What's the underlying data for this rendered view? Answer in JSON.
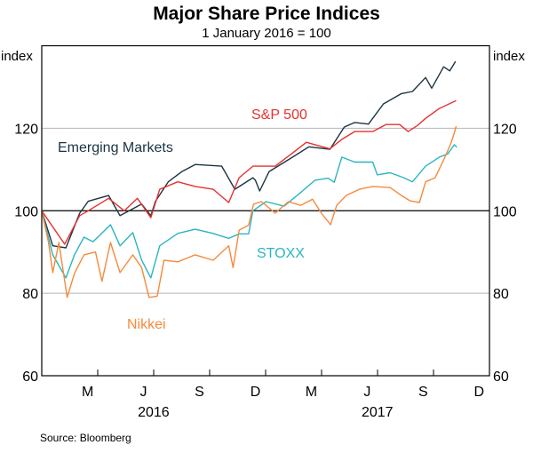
{
  "chart_data": {
    "type": "line",
    "title": "Major Share Price Indices",
    "subtitle": "1 January 2016 = 100",
    "ylabel_left": "index",
    "ylabel_right": "index",
    "ylim": [
      60,
      140
    ],
    "yticks": [
      60,
      80,
      100,
      120
    ],
    "xlim": [
      "2016-01-01",
      "2017-12-31"
    ],
    "xtick_labels": [
      {
        "label": "M",
        "date": "2016-03-15"
      },
      {
        "label": "J",
        "date": "2016-06-15"
      },
      {
        "label": "S",
        "date": "2016-09-15"
      },
      {
        "label": "D",
        "date": "2016-12-15"
      },
      {
        "label": "M",
        "date": "2017-03-15"
      },
      {
        "label": "J",
        "date": "2017-06-15"
      },
      {
        "label": "S",
        "date": "2017-09-15"
      },
      {
        "label": "D",
        "date": "2017-12-15"
      }
    ],
    "year_labels": [
      {
        "label": "2016",
        "date": "2016-07-01"
      },
      {
        "label": "2017",
        "date": "2017-07-01"
      }
    ],
    "grid": {
      "horizontal": true,
      "reference_line": 100
    },
    "source": "Source:   Bloomberg",
    "series": [
      {
        "name": "Emerging Markets",
        "color": "#1b3442",
        "points": [
          [
            "2016-01-01",
            100
          ],
          [
            "2016-01-19",
            91.5
          ],
          [
            "2016-02-10",
            91
          ],
          [
            "2016-03-02",
            99.4
          ],
          [
            "2016-03-16",
            102.3
          ],
          [
            "2016-04-19",
            103.7
          ],
          [
            "2016-05-07",
            98.8
          ],
          [
            "2016-06-12",
            101.6
          ],
          [
            "2016-06-27",
            98.8
          ],
          [
            "2016-07-04",
            102.3
          ],
          [
            "2016-07-25",
            107
          ],
          [
            "2016-08-17",
            109.5
          ],
          [
            "2016-09-08",
            111.2
          ],
          [
            "2016-10-21",
            110.8
          ],
          [
            "2016-11-12",
            105.2
          ],
          [
            "2016-12-11",
            108
          ],
          [
            "2016-12-15",
            107.4
          ],
          [
            "2016-12-22",
            104.8
          ],
          [
            "2017-01-07",
            109.5
          ],
          [
            "2017-02-15",
            113
          ],
          [
            "2017-03-11",
            115.5
          ],
          [
            "2017-04-15",
            114.9
          ],
          [
            "2017-05-08",
            120.3
          ],
          [
            "2017-05-25",
            121.4
          ],
          [
            "2017-06-17",
            121
          ],
          [
            "2017-07-11",
            125.9
          ],
          [
            "2017-08-10",
            128.4
          ],
          [
            "2017-08-28",
            128.9
          ],
          [
            "2017-09-19",
            132.3
          ],
          [
            "2017-09-29",
            129.7
          ],
          [
            "2017-10-18",
            134.9
          ],
          [
            "2017-10-28",
            133.9
          ],
          [
            "2017-11-07",
            136.2
          ]
        ]
      },
      {
        "name": "S&P 500",
        "color": "#e5312e",
        "points": [
          [
            "2016-01-01",
            100
          ],
          [
            "2016-02-08",
            91.9
          ],
          [
            "2016-03-02",
            98.8
          ],
          [
            "2016-03-16",
            100
          ],
          [
            "2016-04-19",
            103
          ],
          [
            "2016-05-14",
            100
          ],
          [
            "2016-06-05",
            103
          ],
          [
            "2016-06-27",
            98.3
          ],
          [
            "2016-07-11",
            105.2
          ],
          [
            "2016-08-10",
            107
          ],
          [
            "2016-09-08",
            105.9
          ],
          [
            "2016-10-07",
            105.2
          ],
          [
            "2016-11-02",
            102
          ],
          [
            "2016-11-19",
            108
          ],
          [
            "2016-12-11",
            110.8
          ],
          [
            "2016-12-22",
            110.8
          ],
          [
            "2017-01-17",
            110.8
          ],
          [
            "2017-02-15",
            114
          ],
          [
            "2017-03-07",
            116.6
          ],
          [
            "2017-03-21",
            116
          ],
          [
            "2017-04-15",
            115
          ],
          [
            "2017-05-04",
            117.3
          ],
          [
            "2017-05-25",
            119.2
          ],
          [
            "2017-06-24",
            119.2
          ],
          [
            "2017-07-15",
            120.9
          ],
          [
            "2017-08-07",
            120.9
          ],
          [
            "2017-08-21",
            119.2
          ],
          [
            "2017-09-05",
            120.6
          ],
          [
            "2017-09-19",
            122.4
          ],
          [
            "2017-10-11",
            124.8
          ],
          [
            "2017-11-08",
            126.7
          ]
        ]
      },
      {
        "name": "STOXX",
        "color": "#2bb5c0",
        "points": [
          [
            "2016-01-01",
            100
          ],
          [
            "2016-01-19",
            89.3
          ],
          [
            "2016-02-10",
            83.7
          ],
          [
            "2016-02-24",
            89.3
          ],
          [
            "2016-03-09",
            93.6
          ],
          [
            "2016-03-24",
            92.5
          ],
          [
            "2016-04-22",
            96.6
          ],
          [
            "2016-05-07",
            91.5
          ],
          [
            "2016-05-28",
            94.7
          ],
          [
            "2016-06-12",
            88
          ],
          [
            "2016-06-27",
            83.7
          ],
          [
            "2016-07-11",
            91.5
          ],
          [
            "2016-08-10",
            94.5
          ],
          [
            "2016-09-08",
            95.5
          ],
          [
            "2016-10-07",
            94.5
          ],
          [
            "2016-11-02",
            93.3
          ],
          [
            "2016-11-19",
            94.4
          ],
          [
            "2016-12-04",
            94.4
          ],
          [
            "2016-12-11",
            100
          ],
          [
            "2017-01-02",
            102.2
          ],
          [
            "2017-02-01",
            101.1
          ],
          [
            "2017-02-28",
            104.4
          ],
          [
            "2017-03-21",
            107.4
          ],
          [
            "2017-04-12",
            107.9
          ],
          [
            "2017-04-22",
            106.9
          ],
          [
            "2017-05-04",
            113
          ],
          [
            "2017-05-25",
            111.8
          ],
          [
            "2017-06-24",
            111.8
          ],
          [
            "2017-07-01",
            108.7
          ],
          [
            "2017-07-22",
            109.2
          ],
          [
            "2017-08-14",
            108
          ],
          [
            "2017-08-28",
            107
          ],
          [
            "2017-09-19",
            110.8
          ],
          [
            "2017-10-11",
            113
          ],
          [
            "2017-10-25",
            113.8
          ],
          [
            "2017-11-05",
            116
          ],
          [
            "2017-11-09",
            115.4
          ]
        ]
      },
      {
        "name": "Nikkei",
        "color": "#f58a3c",
        "points": [
          [
            "2016-01-01",
            100
          ],
          [
            "2016-01-12",
            92.3
          ],
          [
            "2016-01-19",
            85
          ],
          [
            "2016-01-29",
            92.3
          ],
          [
            "2016-02-12",
            79
          ],
          [
            "2016-02-24",
            84.8
          ],
          [
            "2016-03-09",
            89.3
          ],
          [
            "2016-03-28",
            90
          ],
          [
            "2016-04-08",
            82.9
          ],
          [
            "2016-04-22",
            92.3
          ],
          [
            "2016-05-07",
            85
          ],
          [
            "2016-05-28",
            89.3
          ],
          [
            "2016-06-12",
            86.2
          ],
          [
            "2016-06-24",
            79
          ],
          [
            "2016-07-07",
            79.3
          ],
          [
            "2016-07-18",
            88
          ],
          [
            "2016-08-10",
            87.6
          ],
          [
            "2016-09-08",
            89.3
          ],
          [
            "2016-10-07",
            88
          ],
          [
            "2016-11-02",
            91.5
          ],
          [
            "2016-11-09",
            86.2
          ],
          [
            "2016-11-19",
            95.3
          ],
          [
            "2016-12-04",
            96.5
          ],
          [
            "2016-12-12",
            101.6
          ],
          [
            "2016-12-25",
            102.2
          ],
          [
            "2017-01-17",
            99.4
          ],
          [
            "2017-02-08",
            102.2
          ],
          [
            "2017-02-28",
            101.3
          ],
          [
            "2017-03-17",
            102.8
          ],
          [
            "2017-04-01",
            99.4
          ],
          [
            "2017-04-16",
            96.6
          ],
          [
            "2017-04-26",
            101.3
          ],
          [
            "2017-05-11",
            103.7
          ],
          [
            "2017-06-02",
            105.2
          ],
          [
            "2017-06-24",
            105.9
          ],
          [
            "2017-07-22",
            105.6
          ],
          [
            "2017-08-10",
            103.7
          ],
          [
            "2017-08-24",
            102.4
          ],
          [
            "2017-09-09",
            102
          ],
          [
            "2017-09-19",
            107
          ],
          [
            "2017-10-04",
            108
          ],
          [
            "2017-10-18",
            112.3
          ],
          [
            "2017-10-29",
            116
          ],
          [
            "2017-11-05",
            118.8
          ],
          [
            "2017-11-08",
            120.5
          ]
        ]
      }
    ]
  }
}
